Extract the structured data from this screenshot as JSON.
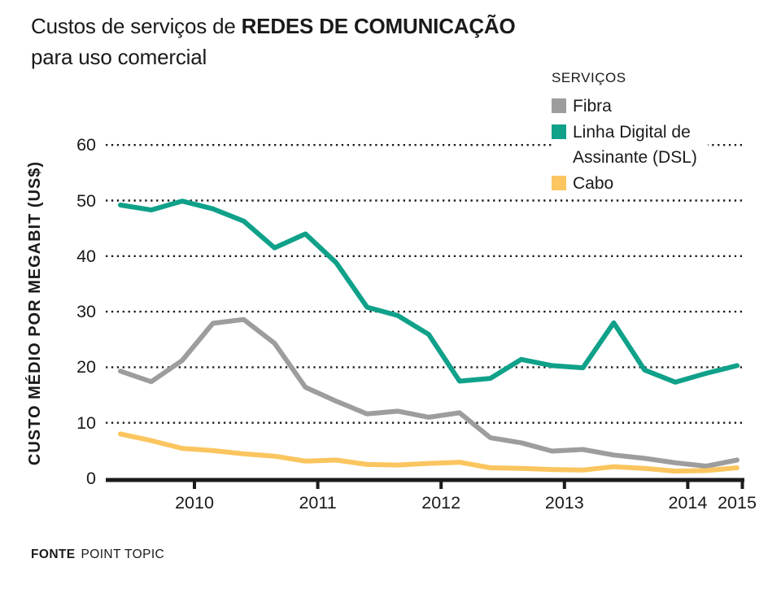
{
  "title": {
    "prefix": "Custos de serviços de ",
    "bold": "REDES DE COMUNICAÇÃO",
    "line2": "para uso comercial"
  },
  "source": {
    "label": "FONTE",
    "value": "POINT TOPIC"
  },
  "legend": {
    "title": "SERVIÇOS",
    "items": [
      {
        "label": "Fibra",
        "color": "#9D9D9D"
      },
      {
        "label": "Linha Digital de Assinante (DSL)",
        "color": "#0FA189"
      },
      {
        "label": "Cabo",
        "color": "#FBC55F"
      }
    ]
  },
  "chart_data": {
    "type": "line",
    "title": "Custos de serviços de redes de comunicação para uso comercial",
    "ylabel": "CUSTO MÉDIO POR MEGABIT (US$)",
    "xlabel": "",
    "ylim": [
      0,
      60
    ],
    "y_ticks": [
      0,
      10,
      20,
      30,
      40,
      50,
      60
    ],
    "x_ticks": [
      2010,
      2011,
      2012,
      2013,
      2014,
      2015
    ],
    "grid": "dotted-horizontal",
    "legend_position": "top-right",
    "x": [
      2009.4,
      2009.65,
      2009.9,
      2010.15,
      2010.4,
      2010.65,
      2010.9,
      2011.15,
      2011.4,
      2011.65,
      2011.9,
      2012.15,
      2012.4,
      2012.65,
      2012.9,
      2013.15,
      2013.4,
      2013.65,
      2013.9,
      2014.15,
      2014.4
    ],
    "series": [
      {
        "name": "Fibra",
        "color": "#9D9D9D",
        "values": [
          19.3,
          17.4,
          21.2,
          27.9,
          28.6,
          24.3,
          16.4,
          13.9,
          11.6,
          12.1,
          11.0,
          11.8,
          7.3,
          6.4,
          4.9,
          5.2,
          4.2,
          3.6,
          2.8,
          2.2,
          3.3
        ]
      },
      {
        "name": "Linha Digital de Assinante (DSL)",
        "color": "#0FA189",
        "values": [
          49.2,
          48.3,
          49.9,
          48.5,
          46.3,
          41.5,
          44.0,
          38.8,
          30.8,
          29.3,
          25.9,
          17.5,
          18.0,
          21.4,
          20.3,
          19.9,
          28.0,
          19.5,
          17.3,
          18.9,
          20.3
        ]
      },
      {
        "name": "Cabo",
        "color": "#FBC55F",
        "values": [
          8.0,
          6.8,
          5.4,
          5.0,
          4.4,
          4.0,
          3.1,
          3.3,
          2.5,
          2.4,
          2.7,
          2.9,
          1.9,
          1.8,
          1.6,
          1.5,
          2.1,
          1.8,
          1.3,
          1.4,
          1.9
        ]
      }
    ]
  }
}
